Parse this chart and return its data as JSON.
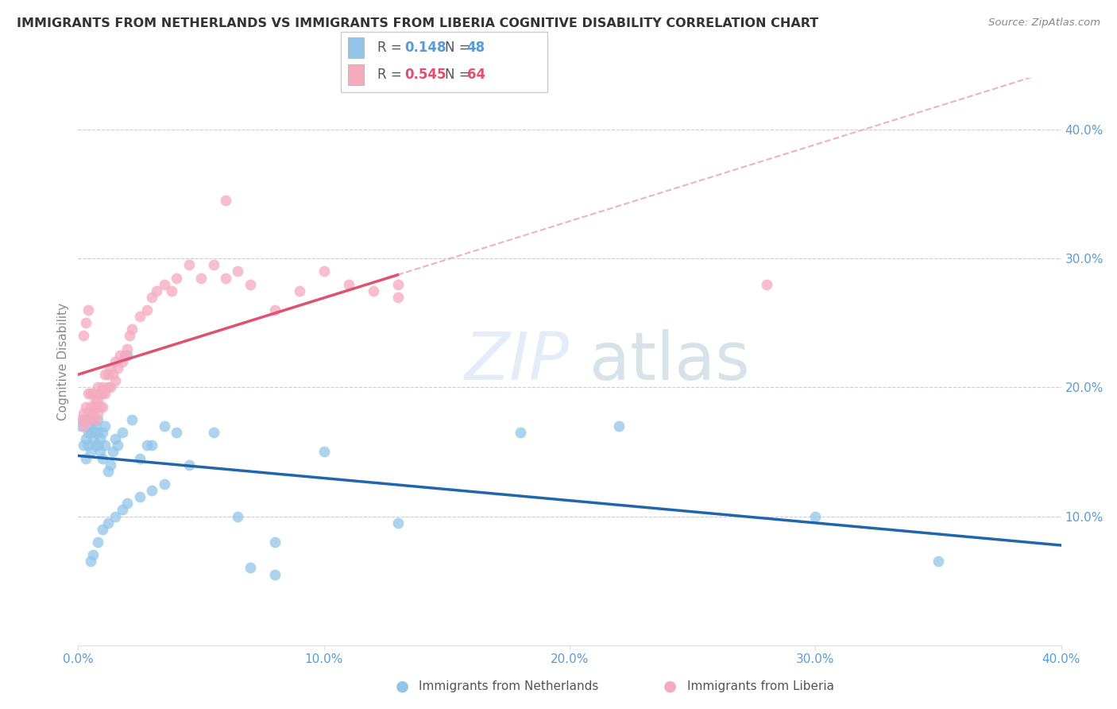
{
  "title": "IMMIGRANTS FROM NETHERLANDS VS IMMIGRANTS FROM LIBERIA COGNITIVE DISABILITY CORRELATION CHART",
  "source": "Source: ZipAtlas.com",
  "xlabel_netherlands": "Immigrants from Netherlands",
  "xlabel_liberia": "Immigrants from Liberia",
  "ylabel": "Cognitive Disability",
  "legend_netherlands": {
    "R": "0.148",
    "N": "48"
  },
  "legend_liberia": {
    "R": "0.545",
    "N": "64"
  },
  "xlim": [
    0.0,
    0.4
  ],
  "ylim": [
    0.0,
    0.44
  ],
  "x_ticks": [
    0.0,
    0.1,
    0.2,
    0.3,
    0.4
  ],
  "y_ticks": [
    0.1,
    0.2,
    0.3,
    0.4
  ],
  "x_tick_labels": [
    "0.0%",
    "10.0%",
    "20.0%",
    "30.0%",
    "40.0%"
  ],
  "y_tick_labels": [
    "10.0%",
    "20.0%",
    "30.0%",
    "40.0%"
  ],
  "color_netherlands": "#92C5E8",
  "color_liberia": "#F5AABE",
  "line_color_netherlands": "#2166AC",
  "line_color_liberia": "#E05070",
  "dashed_line_color": "#E8A0B0",
  "watermark_zip": "ZIP",
  "watermark_atlas": "atlas",
  "netherlands_x": [
    0.001,
    0.002,
    0.002,
    0.003,
    0.003,
    0.003,
    0.004,
    0.004,
    0.005,
    0.005,
    0.005,
    0.006,
    0.006,
    0.007,
    0.007,
    0.007,
    0.008,
    0.008,
    0.008,
    0.009,
    0.009,
    0.01,
    0.01,
    0.011,
    0.011,
    0.012,
    0.013,
    0.014,
    0.015,
    0.016,
    0.018,
    0.02,
    0.022,
    0.025,
    0.028,
    0.03,
    0.035,
    0.04,
    0.045,
    0.055,
    0.065,
    0.08,
    0.1,
    0.13,
    0.18,
    0.22,
    0.3,
    0.35
  ],
  "netherlands_y": [
    0.17,
    0.155,
    0.175,
    0.145,
    0.16,
    0.175,
    0.165,
    0.155,
    0.15,
    0.165,
    0.17,
    0.16,
    0.175,
    0.155,
    0.165,
    0.17,
    0.155,
    0.165,
    0.175,
    0.15,
    0.16,
    0.145,
    0.165,
    0.155,
    0.17,
    0.135,
    0.14,
    0.15,
    0.16,
    0.155,
    0.165,
    0.225,
    0.175,
    0.145,
    0.155,
    0.155,
    0.17,
    0.165,
    0.14,
    0.165,
    0.1,
    0.08,
    0.15,
    0.095,
    0.165,
    0.17,
    0.1,
    0.065
  ],
  "netherlands_y_low": [
    0.065,
    0.07,
    0.08,
    0.09,
    0.095,
    0.1,
    0.105,
    0.11,
    0.115,
    0.12,
    0.125,
    0.06,
    0.055
  ],
  "netherlands_x_low": [
    0.005,
    0.006,
    0.008,
    0.01,
    0.012,
    0.015,
    0.018,
    0.02,
    0.025,
    0.03,
    0.035,
    0.07,
    0.08
  ],
  "liberia_x": [
    0.001,
    0.002,
    0.002,
    0.003,
    0.003,
    0.004,
    0.004,
    0.005,
    0.005,
    0.005,
    0.006,
    0.006,
    0.007,
    0.007,
    0.007,
    0.008,
    0.008,
    0.008,
    0.009,
    0.009,
    0.01,
    0.01,
    0.01,
    0.011,
    0.011,
    0.012,
    0.012,
    0.013,
    0.013,
    0.014,
    0.015,
    0.015,
    0.016,
    0.017,
    0.018,
    0.019,
    0.02,
    0.021,
    0.022,
    0.025,
    0.028,
    0.03,
    0.032,
    0.035,
    0.038,
    0.04,
    0.045,
    0.05,
    0.055,
    0.06,
    0.065,
    0.07,
    0.08,
    0.09,
    0.1,
    0.11,
    0.12,
    0.13,
    0.13,
    0.28,
    0.002,
    0.003,
    0.004,
    0.06
  ],
  "liberia_y": [
    0.175,
    0.17,
    0.18,
    0.175,
    0.185,
    0.18,
    0.195,
    0.175,
    0.185,
    0.195,
    0.18,
    0.195,
    0.185,
    0.175,
    0.19,
    0.18,
    0.19,
    0.2,
    0.185,
    0.195,
    0.185,
    0.195,
    0.2,
    0.195,
    0.21,
    0.2,
    0.21,
    0.2,
    0.215,
    0.21,
    0.205,
    0.22,
    0.215,
    0.225,
    0.22,
    0.225,
    0.23,
    0.24,
    0.245,
    0.255,
    0.26,
    0.27,
    0.275,
    0.28,
    0.275,
    0.285,
    0.295,
    0.285,
    0.295,
    0.285,
    0.29,
    0.28,
    0.26,
    0.275,
    0.29,
    0.28,
    0.275,
    0.27,
    0.28,
    0.28,
    0.24,
    0.25,
    0.26,
    0.345
  ]
}
